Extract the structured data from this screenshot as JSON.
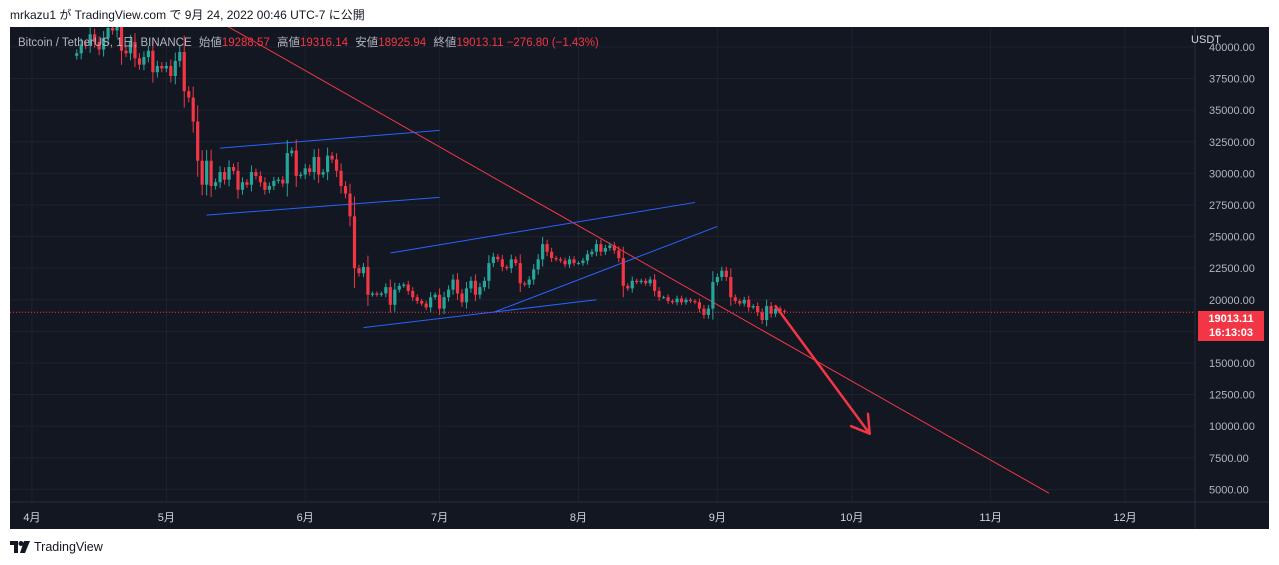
{
  "header": {
    "text": "mrkazu1 が TradingView.com で 9月 24, 2022 00:46 UTC-7 に公開"
  },
  "legend": {
    "symbol": "Bitcoin / TetherUS, 1日, BINANCE",
    "open_label": "始値",
    "open": "19288.57",
    "high_label": "高値",
    "high": "19316.14",
    "low_label": "安値",
    "low": "18925.94",
    "close_label": "終値",
    "close": "19013.11",
    "change": "−276.80 (−1.43%)"
  },
  "price_axis": {
    "unit": "USDT"
  },
  "current_price": {
    "value": "19013.11",
    "countdown": "16:13:03"
  },
  "footer": {
    "brand": "TradingView",
    "logo_icon": "tradingview-logo-icon"
  },
  "colors": {
    "background": "#131722",
    "up": "#26a69a",
    "down": "#f23645",
    "trendline": "#f23645",
    "channel": "#2962ff",
    "text": "#b2b5be"
  },
  "chart_data": {
    "type": "candlestick",
    "symbol": "BTCUSDT",
    "ylim": [
      4000,
      41500
    ],
    "y_ticks": [
      5000,
      7500,
      10000,
      12500,
      15000,
      17500,
      20000,
      22500,
      25000,
      27500,
      30000,
      32500,
      35000,
      37500,
      40000
    ],
    "y_tick_labels": [
      "5000.00",
      "7500.00",
      "10000.00",
      "12500.00",
      "15000.00",
      "17500.00",
      "20000.00",
      "22500.00",
      "25000.00",
      "27500.00",
      "30000.00",
      "32500.00",
      "35000.00",
      "37500.00",
      "40000.00"
    ],
    "x_range": [
      "2022-03-28",
      "2022-12-31"
    ],
    "x_ticks": [
      "2022-04-01",
      "2022-05-01",
      "2022-06-01",
      "2022-07-01",
      "2022-08-01",
      "2022-09-01",
      "2022-10-01",
      "2022-11-01",
      "2022-12-01"
    ],
    "x_tick_labels": [
      "4月",
      "5月",
      "6月",
      "7月",
      "8月",
      "9月",
      "10月",
      "11月",
      "12月"
    ],
    "last_price": 19013.11,
    "closes": {
      "start": "2022-04-11",
      "values": [
        39500,
        40200,
        40100,
        41000,
        40400,
        39800,
        40700,
        41500,
        41300,
        42200,
        39700,
        39500,
        40400,
        39100,
        38600,
        39200,
        39700,
        38000,
        38500,
        38300,
        38500,
        37700,
        38900,
        39600,
        36500,
        36000,
        34100,
        31000,
        29100,
        31000,
        29000,
        29300,
        30100,
        29500,
        30500,
        30200,
        28700,
        29300,
        29100,
        30100,
        29800,
        29300,
        28700,
        29000,
        29400,
        29500,
        29200,
        31600,
        31800,
        29800,
        29900,
        30400,
        30100,
        31300,
        29900,
        30100,
        31400,
        31100,
        30200,
        29000,
        28400,
        26600,
        22500,
        22100,
        22600,
        20400,
        20500,
        20400,
        20500,
        21000,
        19600,
        20800,
        21100,
        21200,
        20700,
        20200,
        19900,
        19700,
        19400,
        20200,
        20400,
        19300,
        20200,
        20800,
        21600,
        20500,
        19800,
        20900,
        21500,
        20400,
        21000,
        21500,
        22900,
        23400,
        23200,
        22600,
        22500,
        23200,
        22900,
        21300,
        21200,
        21600,
        22400,
        23200,
        24400,
        23800,
        23300,
        23200,
        23100,
        22800,
        23200,
        22900,
        22900,
        23100,
        23600,
        23800,
        24400,
        23800,
        24100,
        24300,
        23900,
        23300,
        21100,
        20900,
        21500,
        21400,
        21500,
        21300,
        21600,
        20700,
        20200,
        20200,
        19900,
        19800,
        20100,
        19800,
        20000,
        19900,
        19800,
        19300,
        18800,
        19300,
        21400,
        21800,
        22300,
        21800,
        20200,
        19900,
        19700,
        20000,
        19400,
        19500,
        19000,
        18400,
        19500,
        18900,
        19300,
        19100,
        19013
      ]
    },
    "trendlines": [
      {
        "name": "descending-resistance",
        "color": "#f23645",
        "from": [
          "2022-04-18",
          47000
        ],
        "to": [
          "2022-11-14",
          4700
        ]
      },
      {
        "name": "upper-channel-may",
        "color": "#2962ff",
        "from": [
          "2022-05-13",
          32000
        ],
        "to": [
          "2022-07-01",
          33400
        ]
      },
      {
        "name": "lower-channel-may",
        "color": "#2962ff",
        "from": [
          "2022-05-10",
          26700
        ],
        "to": [
          "2022-07-01",
          28100
        ]
      },
      {
        "name": "upper-channel-summer",
        "color": "#2962ff",
        "from": [
          "2022-06-20",
          23700
        ],
        "to": [
          "2022-08-27",
          27700
        ]
      },
      {
        "name": "lower-channel-summer",
        "color": "#2962ff",
        "from": [
          "2022-06-14",
          17800
        ],
        "to": [
          "2022-08-05",
          20000
        ]
      },
      {
        "name": "rising-support",
        "color": "#2962ff",
        "from": [
          "2022-07-13",
          19000
        ],
        "to": [
          "2022-09-01",
          25800
        ]
      }
    ],
    "arrow": {
      "color": "#f23645",
      "from": [
        "2022-09-14",
        19500
      ],
      "to": [
        "2022-10-05",
        9400
      ]
    }
  }
}
